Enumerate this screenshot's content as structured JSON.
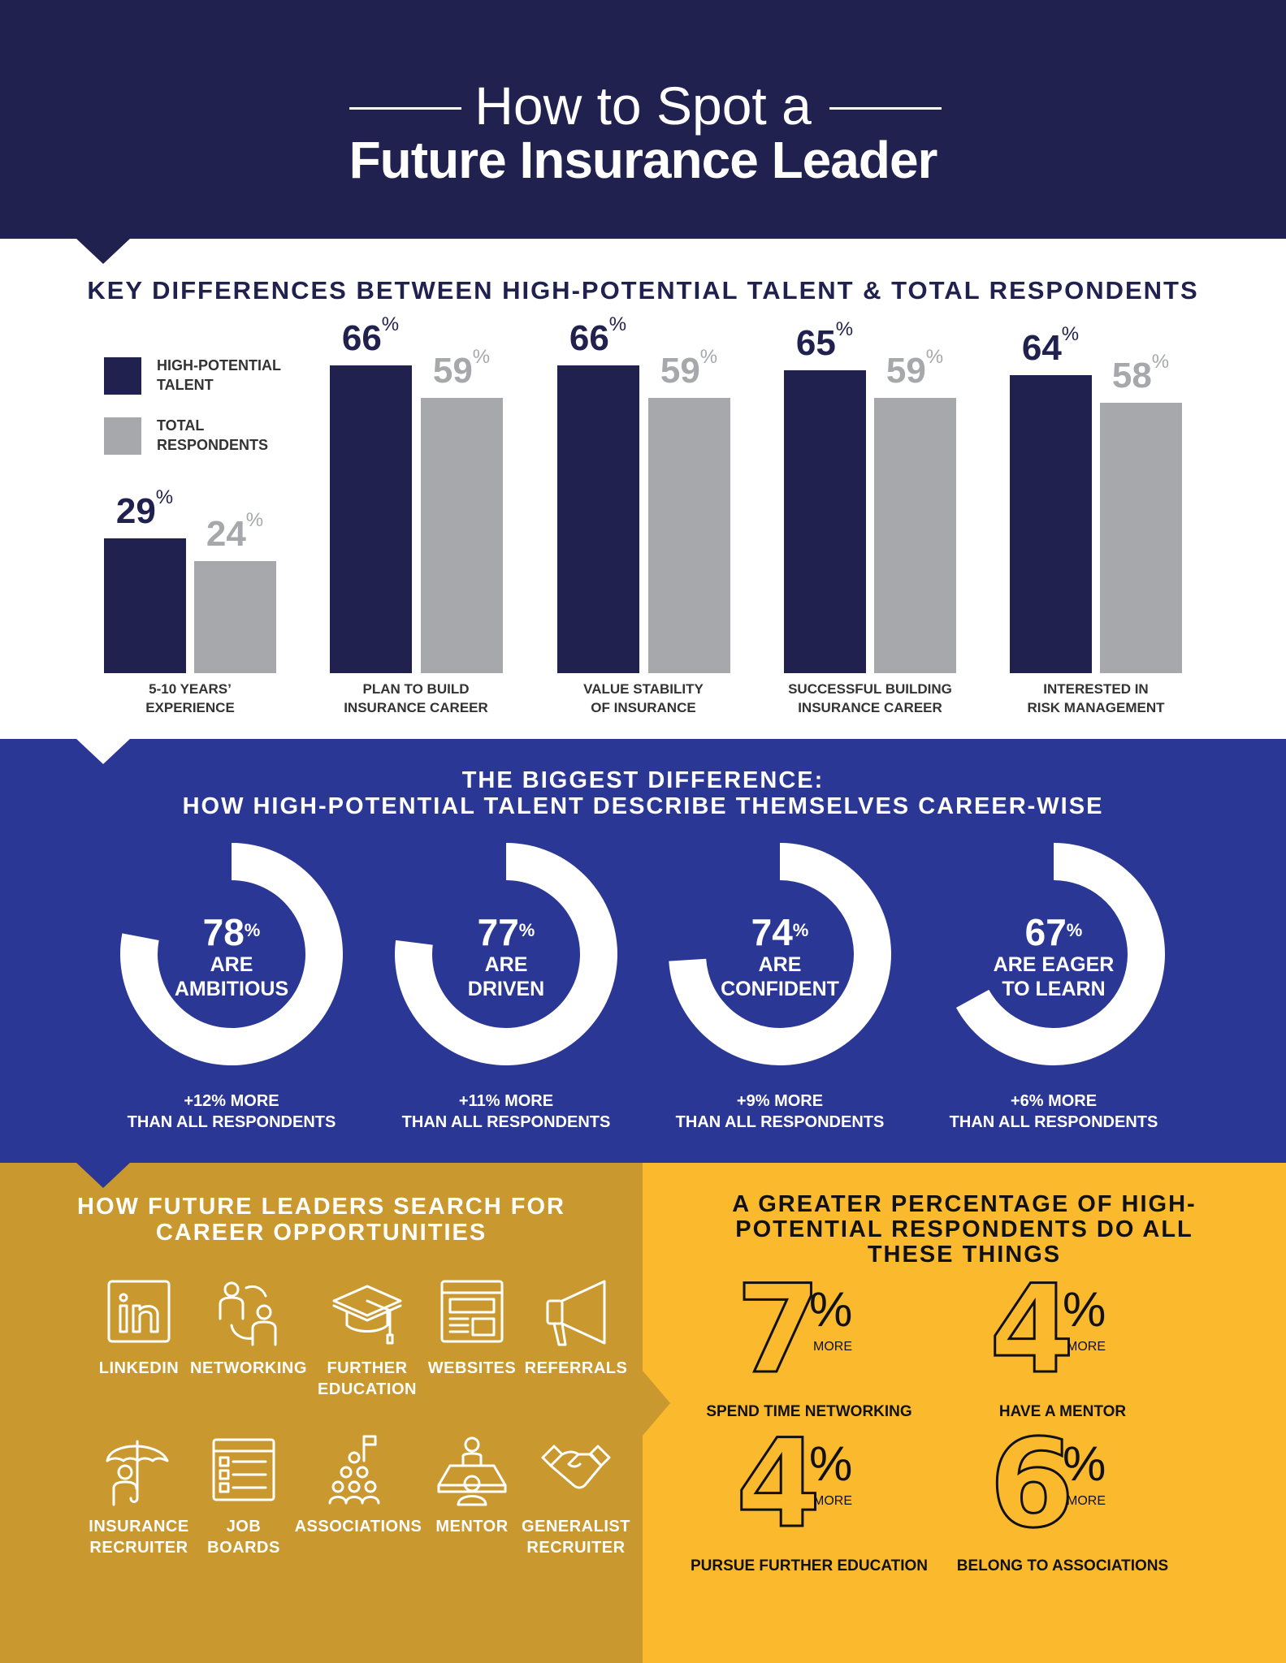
{
  "header": {
    "title_line1": "How to Spot a",
    "title_line2": "Future Insurance Leader"
  },
  "colors": {
    "navy": "#20214f",
    "grey": "#a7a8ab",
    "blue": "#2b3794",
    "gold": "#c9982e",
    "yellow": "#fbba2d"
  },
  "chart_data": [
    {
      "type": "bar",
      "title": "KEY DIFFERENCES BETWEEN HIGH-POTENTIAL TALENT & TOTAL RESPONDENTS",
      "categories": [
        "5-10 YEARS’\nEXPERIENCE",
        "PLAN TO BUILD\nINSURANCE CAREER",
        "VALUE STABILITY\nOF INSURANCE",
        "SUCCESSFUL BUILDING\nINSURANCE CAREER",
        "INTERESTED IN\nRISK MANAGEMENT"
      ],
      "series": [
        {
          "name": "HIGH-POTENTIAL\nTALENT",
          "color": "#20214f",
          "values": [
            29,
            66,
            66,
            65,
            64
          ]
        },
        {
          "name": "TOTAL\nRESPONDENTS",
          "color": "#a7a8ab",
          "values": [
            24,
            59,
            59,
            59,
            58
          ]
        }
      ],
      "unit": "%",
      "legend": "top-left",
      "grid": false
    },
    {
      "type": "pie",
      "title": "THE BIGGEST DIFFERENCE:\nHOW HIGH-POTENTIAL TALENT DESCRIBE THEMSELVES CAREER-WISE",
      "items": [
        {
          "value": 78,
          "label": "ARE\nAMBITIOUS",
          "sub": "+12% MORE\nTHAN ALL RESPONDENTS"
        },
        {
          "value": 77,
          "label": "ARE\nDRIVEN",
          "sub": "+11% MORE\nTHAN ALL RESPONDENTS"
        },
        {
          "value": 74,
          "label": "ARE\nCONFIDENT",
          "sub": "+9% MORE\nTHAN ALL RESPONDENTS"
        },
        {
          "value": 67,
          "label": "ARE EAGER\nTO LEARN",
          "sub": "+6% MORE\nTHAN ALL RESPONDENTS"
        }
      ],
      "unit": "%"
    }
  ],
  "search": {
    "title": "HOW FUTURE LEADERS SEARCH FOR\nCAREER OPPORTUNITIES",
    "items": [
      {
        "label": "LINKEDIN",
        "icon": "linkedin-icon"
      },
      {
        "label": "NETWORKING",
        "icon": "networking-icon"
      },
      {
        "label": "FURTHER\nEDUCATION",
        "icon": "graduation-cap-icon"
      },
      {
        "label": "WEBSITES",
        "icon": "website-icon"
      },
      {
        "label": "REFERRALS",
        "icon": "megaphone-icon"
      },
      {
        "label": "INSURANCE\nRECRUITER",
        "icon": "umbrella-person-icon"
      },
      {
        "label": "JOB\nBOARDS",
        "icon": "job-board-icon"
      },
      {
        "label": "ASSOCIATIONS",
        "icon": "group-flag-icon"
      },
      {
        "label": "MENTOR",
        "icon": "mentor-desk-icon"
      },
      {
        "label": "GENERALIST\nRECRUITER",
        "icon": "handshake-icon"
      }
    ]
  },
  "stats": {
    "title": "A GREATER PERCENTAGE OF HIGH-\nPOTENTIAL RESPONDENTS DO ALL\nTHESE THINGS",
    "items": [
      {
        "value": "7",
        "unit": "%",
        "more": "MORE",
        "label": "SPEND TIME NETWORKING"
      },
      {
        "value": "4",
        "unit": "%",
        "more": "MORE",
        "label": "HAVE A MENTOR"
      },
      {
        "value": "4",
        "unit": "%",
        "more": "MORE",
        "label": "PURSUE FURTHER EDUCATION"
      },
      {
        "value": "6",
        "unit": "%",
        "more": "MORE",
        "label": "BELONG TO ASSOCIATIONS"
      }
    ]
  }
}
